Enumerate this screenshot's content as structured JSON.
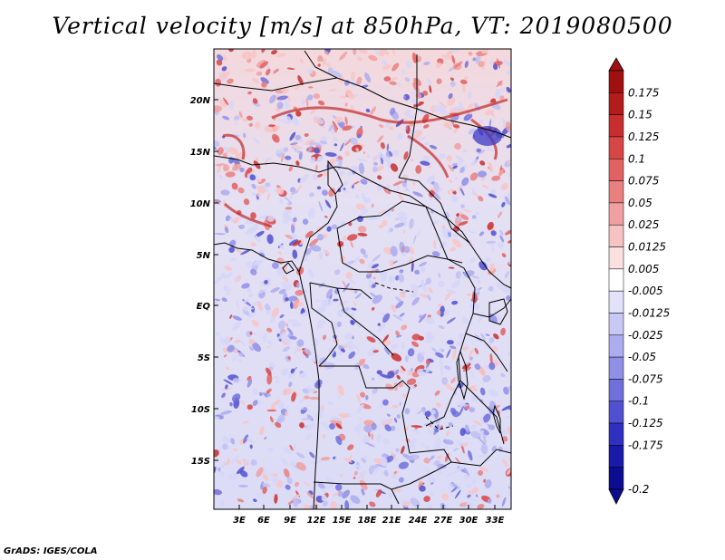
{
  "title": "Vertical velocity [m/s] at 850hPa, VT: 2019080500",
  "credit": "GrADS: IGES/COLA",
  "map": {
    "lat_labels": [
      "20N",
      "15N",
      "10N",
      "5N",
      "EQ",
      "5S",
      "10S",
      "15S"
    ],
    "lon_labels": [
      "3E",
      "6E",
      "9E",
      "12E",
      "15E",
      "18E",
      "21E",
      "24E",
      "27E",
      "30E",
      "33E"
    ]
  },
  "colorbar": {
    "labels": [
      "0.175",
      "0.15",
      "0.125",
      "0.1",
      "0.075",
      "0.05",
      "0.025",
      "0.0125",
      "0.005",
      "-0.005",
      "-0.0125",
      "-0.025",
      "-0.05",
      "-0.075",
      "-0.1",
      "-0.125",
      "-0.175",
      "-0.2"
    ],
    "colors": [
      "#a01010",
      "#b41c1c",
      "#c82e2e",
      "#d64646",
      "#e06262",
      "#e88080",
      "#f0a0a0",
      "#f6c2c2",
      "#fbe0e0",
      "#ffffff",
      "#e2e2fb",
      "#c8c8f4",
      "#acacee",
      "#9090e6",
      "#7070dc",
      "#5050d0",
      "#3030c0",
      "#1a1aa8",
      "#0c0c90"
    ],
    "top_color": "#a01010",
    "bottom_color": "#0c0c90"
  }
}
